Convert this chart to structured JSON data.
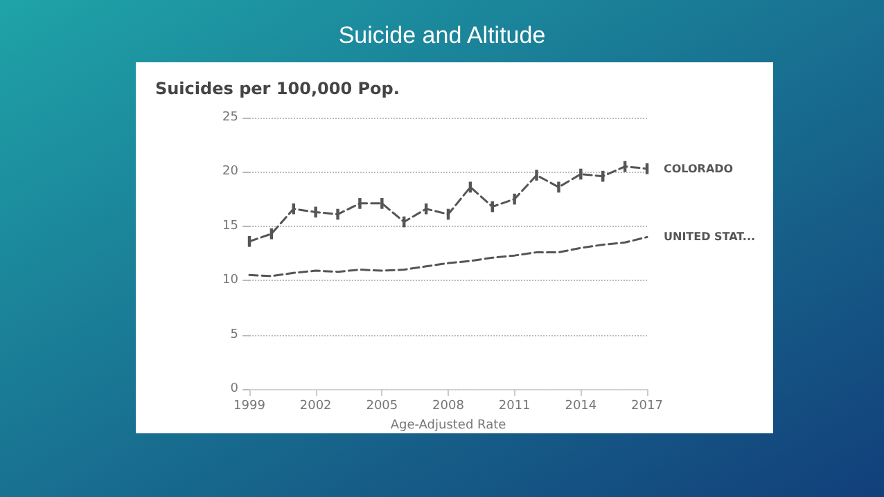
{
  "chart_data": {
    "type": "line",
    "title": "Suicide and Altitude",
    "subtitle": "Suicides per 100,000 Pop.",
    "xlabel": "Age-Adjusted Rate",
    "x": [
      1999,
      2000,
      2001,
      2002,
      2003,
      2004,
      2005,
      2006,
      2007,
      2008,
      2009,
      2010,
      2011,
      2012,
      2013,
      2014,
      2015,
      2016,
      2017
    ],
    "series": [
      {
        "name": "COLORADO",
        "color": "#555555",
        "line_style": "dashed",
        "values": [
          13.6,
          14.3,
          16.6,
          16.3,
          16.1,
          17.1,
          17.1,
          15.4,
          16.6,
          16.1,
          18.6,
          16.8,
          17.5,
          19.7,
          18.6,
          19.8,
          19.6,
          20.5,
          20.3
        ],
        "errors": [
          0.5,
          0.5,
          0.5,
          0.5,
          0.5,
          0.5,
          0.5,
          0.5,
          0.5,
          0.5,
          0.5,
          0.5,
          0.5,
          0.5,
          0.5,
          0.5,
          0.5,
          0.5,
          0.5
        ]
      },
      {
        "name": "UNITED STAT...",
        "color": "#555555",
        "line_style": "dashed",
        "values": [
          10.5,
          10.4,
          10.7,
          10.9,
          10.8,
          11.0,
          10.9,
          11.0,
          11.3,
          11.6,
          11.8,
          12.1,
          12.3,
          12.6,
          12.6,
          13.0,
          13.3,
          13.5,
          14.0
        ]
      }
    ],
    "xlim": [
      1999,
      2017
    ],
    "xticks": [
      1999,
      2002,
      2005,
      2008,
      2011,
      2014,
      2017
    ],
    "ylim": [
      0,
      25
    ],
    "yticks": [
      0,
      5,
      10,
      15,
      20,
      25
    ],
    "grid": "y",
    "marker": "none"
  }
}
